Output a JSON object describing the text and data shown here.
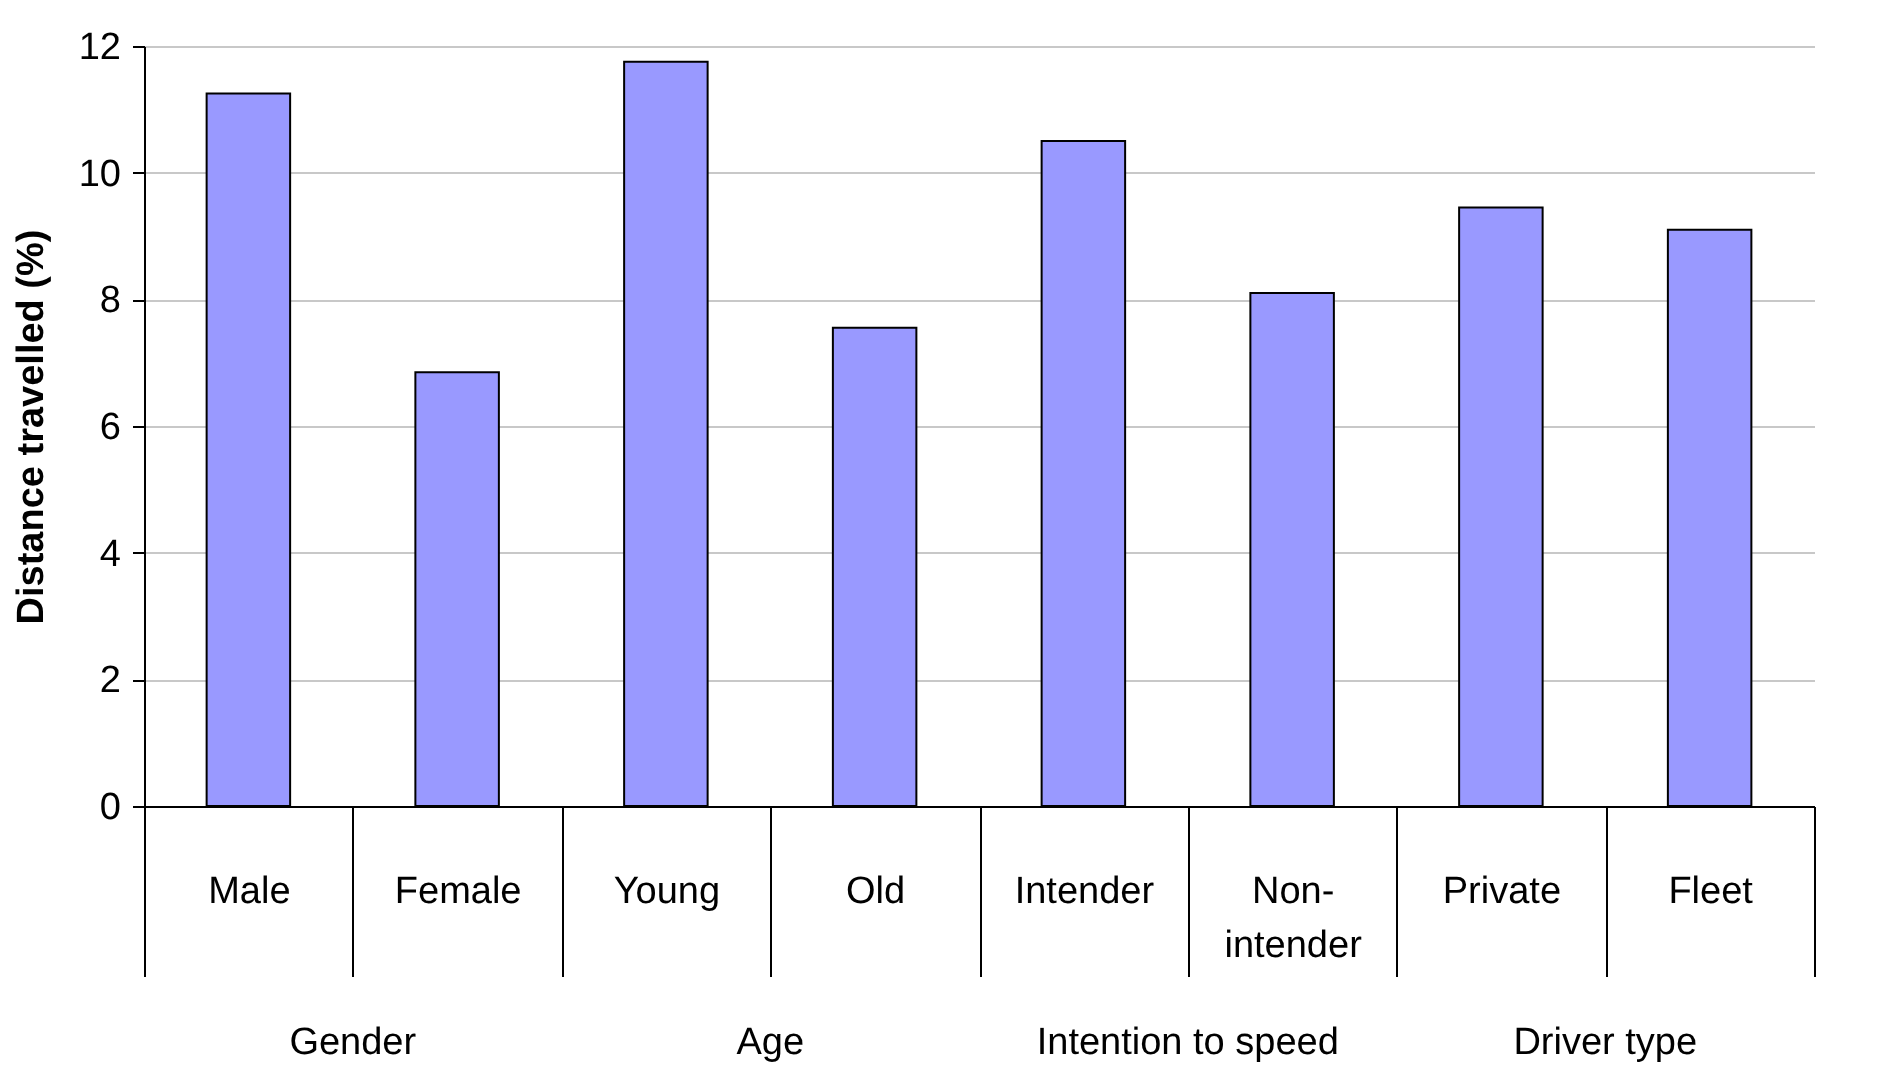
{
  "chart_data": {
    "type": "bar",
    "ylabel": "Distance travelled (%)",
    "categories": [
      "Male",
      "Female",
      "Young",
      "Old",
      "Intender",
      "Non-intender",
      "Private",
      "Fleet"
    ],
    "values": [
      11.25,
      6.85,
      11.75,
      7.55,
      10.5,
      8.1,
      9.45,
      9.1
    ],
    "color": "#9999ff",
    "ylim": [
      0,
      12
    ],
    "yticks": [
      0,
      2,
      4,
      6,
      8,
      10,
      12
    ],
    "grid": "y",
    "annotations": [
      "Gender",
      "Age",
      "Intention to speed",
      "Driver type"
    ]
  }
}
